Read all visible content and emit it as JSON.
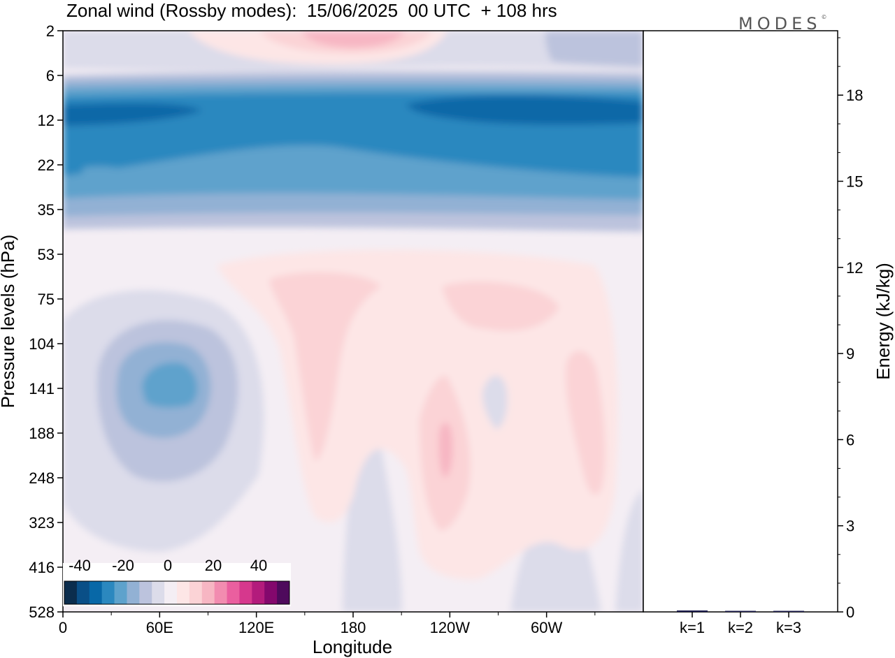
{
  "title": "Zonal wind (Rossby modes):  15/06/2025  00 UTC  + 108 hrs",
  "brand": "MODES",
  "brand_mark": "©",
  "colors": {
    "neg": [
      "#0b2d4d",
      "#0a4f87",
      "#0868a7",
      "#2b88bf",
      "#5ea2cc",
      "#92b1d4",
      "#bcc3dd",
      "#dcdcea",
      "#f4eef4"
    ],
    "pos": [
      "#fde6e6",
      "#fbd3d6",
      "#f7b6c3",
      "#f28cb0",
      "#ea5f9f",
      "#d6388d",
      "#b31b7c",
      "#84086d",
      "#4e0a5c"
    ]
  },
  "chart_data": [
    {
      "type": "heatmap",
      "title": "Zonal wind (Rossby modes):  15/06/2025  00 UTC  + 108 hrs",
      "xlabel": "Longitude",
      "ylabel": "Pressure levels (hPa)",
      "x_ticks": [
        "0",
        "60E",
        "120E",
        "180",
        "120W",
        "60W"
      ],
      "y_ticks": [
        "2",
        "6",
        "12",
        "22",
        "35",
        "53",
        "75",
        "104",
        "141",
        "188",
        "248",
        "323",
        "416",
        "528"
      ],
      "colorbar": {
        "ticks": [
          "-40",
          "-20",
          "0",
          "20",
          "40"
        ],
        "range": [
          -45,
          45
        ],
        "step": 5
      },
      "features": [
        {
          "kind": "band",
          "pressure_range": [
            "6",
            "35"
          ],
          "value": -30
        },
        {
          "kind": "band",
          "pressure_range": [
            "10",
            "22"
          ],
          "value": -40
        },
        {
          "kind": "blob",
          "longitude": "60E",
          "pressure": "141",
          "value": -20
        },
        {
          "kind": "blob",
          "longitude": "180",
          "pressure": "2",
          "value": 10
        },
        {
          "kind": "blob",
          "longitude": "120W",
          "pressure": "188",
          "value": 15
        }
      ]
    },
    {
      "type": "bar",
      "categories": [
        "k=1",
        "k=2",
        "k=3"
      ],
      "values": [
        0.05,
        0.03,
        0.01
      ],
      "ylabel": "Energy (kJ/kg)",
      "ylim": [
        0,
        20
      ],
      "y_ticks": [
        "0",
        "3",
        "6",
        "9",
        "12",
        "15",
        "18"
      ]
    }
  ]
}
